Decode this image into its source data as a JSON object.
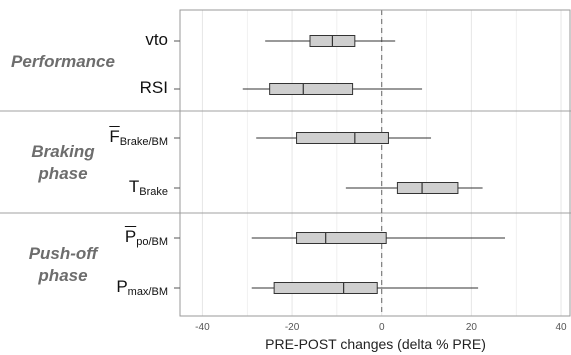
{
  "chart_data": {
    "type": "boxplot",
    "orientation": "horizontal",
    "xlabel": "PRE-POST changes (delta % PRE)",
    "xlim": [
      -45,
      42
    ],
    "xticks": [
      -40,
      -20,
      0,
      20,
      40
    ],
    "reference_line": 0,
    "groups": [
      {
        "label": "Performance",
        "label_lines": [
          "Performance"
        ],
        "items": [
          {
            "main": "vto",
            "bar": "",
            "sub": "",
            "whisker_low": -26,
            "q1": -16,
            "median": -11,
            "q3": -6,
            "whisker_high": 3
          },
          {
            "main": "RSI",
            "bar": "",
            "sub": "",
            "whisker_low": -31,
            "q1": -25,
            "median": -17.5,
            "q3": -6.5,
            "whisker_high": 9
          }
        ]
      },
      {
        "label": "Braking phase",
        "label_lines": [
          "Braking",
          "phase"
        ],
        "items": [
          {
            "main": "",
            "bar": "F",
            "sub": "Brake/BM",
            "whisker_low": -28,
            "q1": -19,
            "median": -6,
            "q3": 1.5,
            "whisker_high": 11
          },
          {
            "main": "T",
            "bar": "",
            "sub": "Brake",
            "whisker_low": -8,
            "q1": 3.5,
            "median": 9,
            "q3": 17,
            "whisker_high": 22.5
          }
        ]
      },
      {
        "label": "Push-off phase",
        "label_lines": [
          "Push-off",
          "phase"
        ],
        "items": [
          {
            "main": "",
            "bar": "P",
            "sub": "po/BM",
            "whisker_low": -29,
            "q1": -19,
            "median": -12.5,
            "q3": 1,
            "whisker_high": 27.5
          },
          {
            "main": "P",
            "bar": "",
            "sub": "max/BM",
            "whisker_low": -29,
            "q1": -24,
            "median": -8.5,
            "q3": -1,
            "whisker_high": 21.5
          }
        ]
      }
    ],
    "colors": {
      "box_fill": "#cfcfcf",
      "box_stroke": "#333333",
      "grid": "#e6e6e6",
      "separator": "#a0a0a0",
      "reference": "#666666"
    }
  }
}
